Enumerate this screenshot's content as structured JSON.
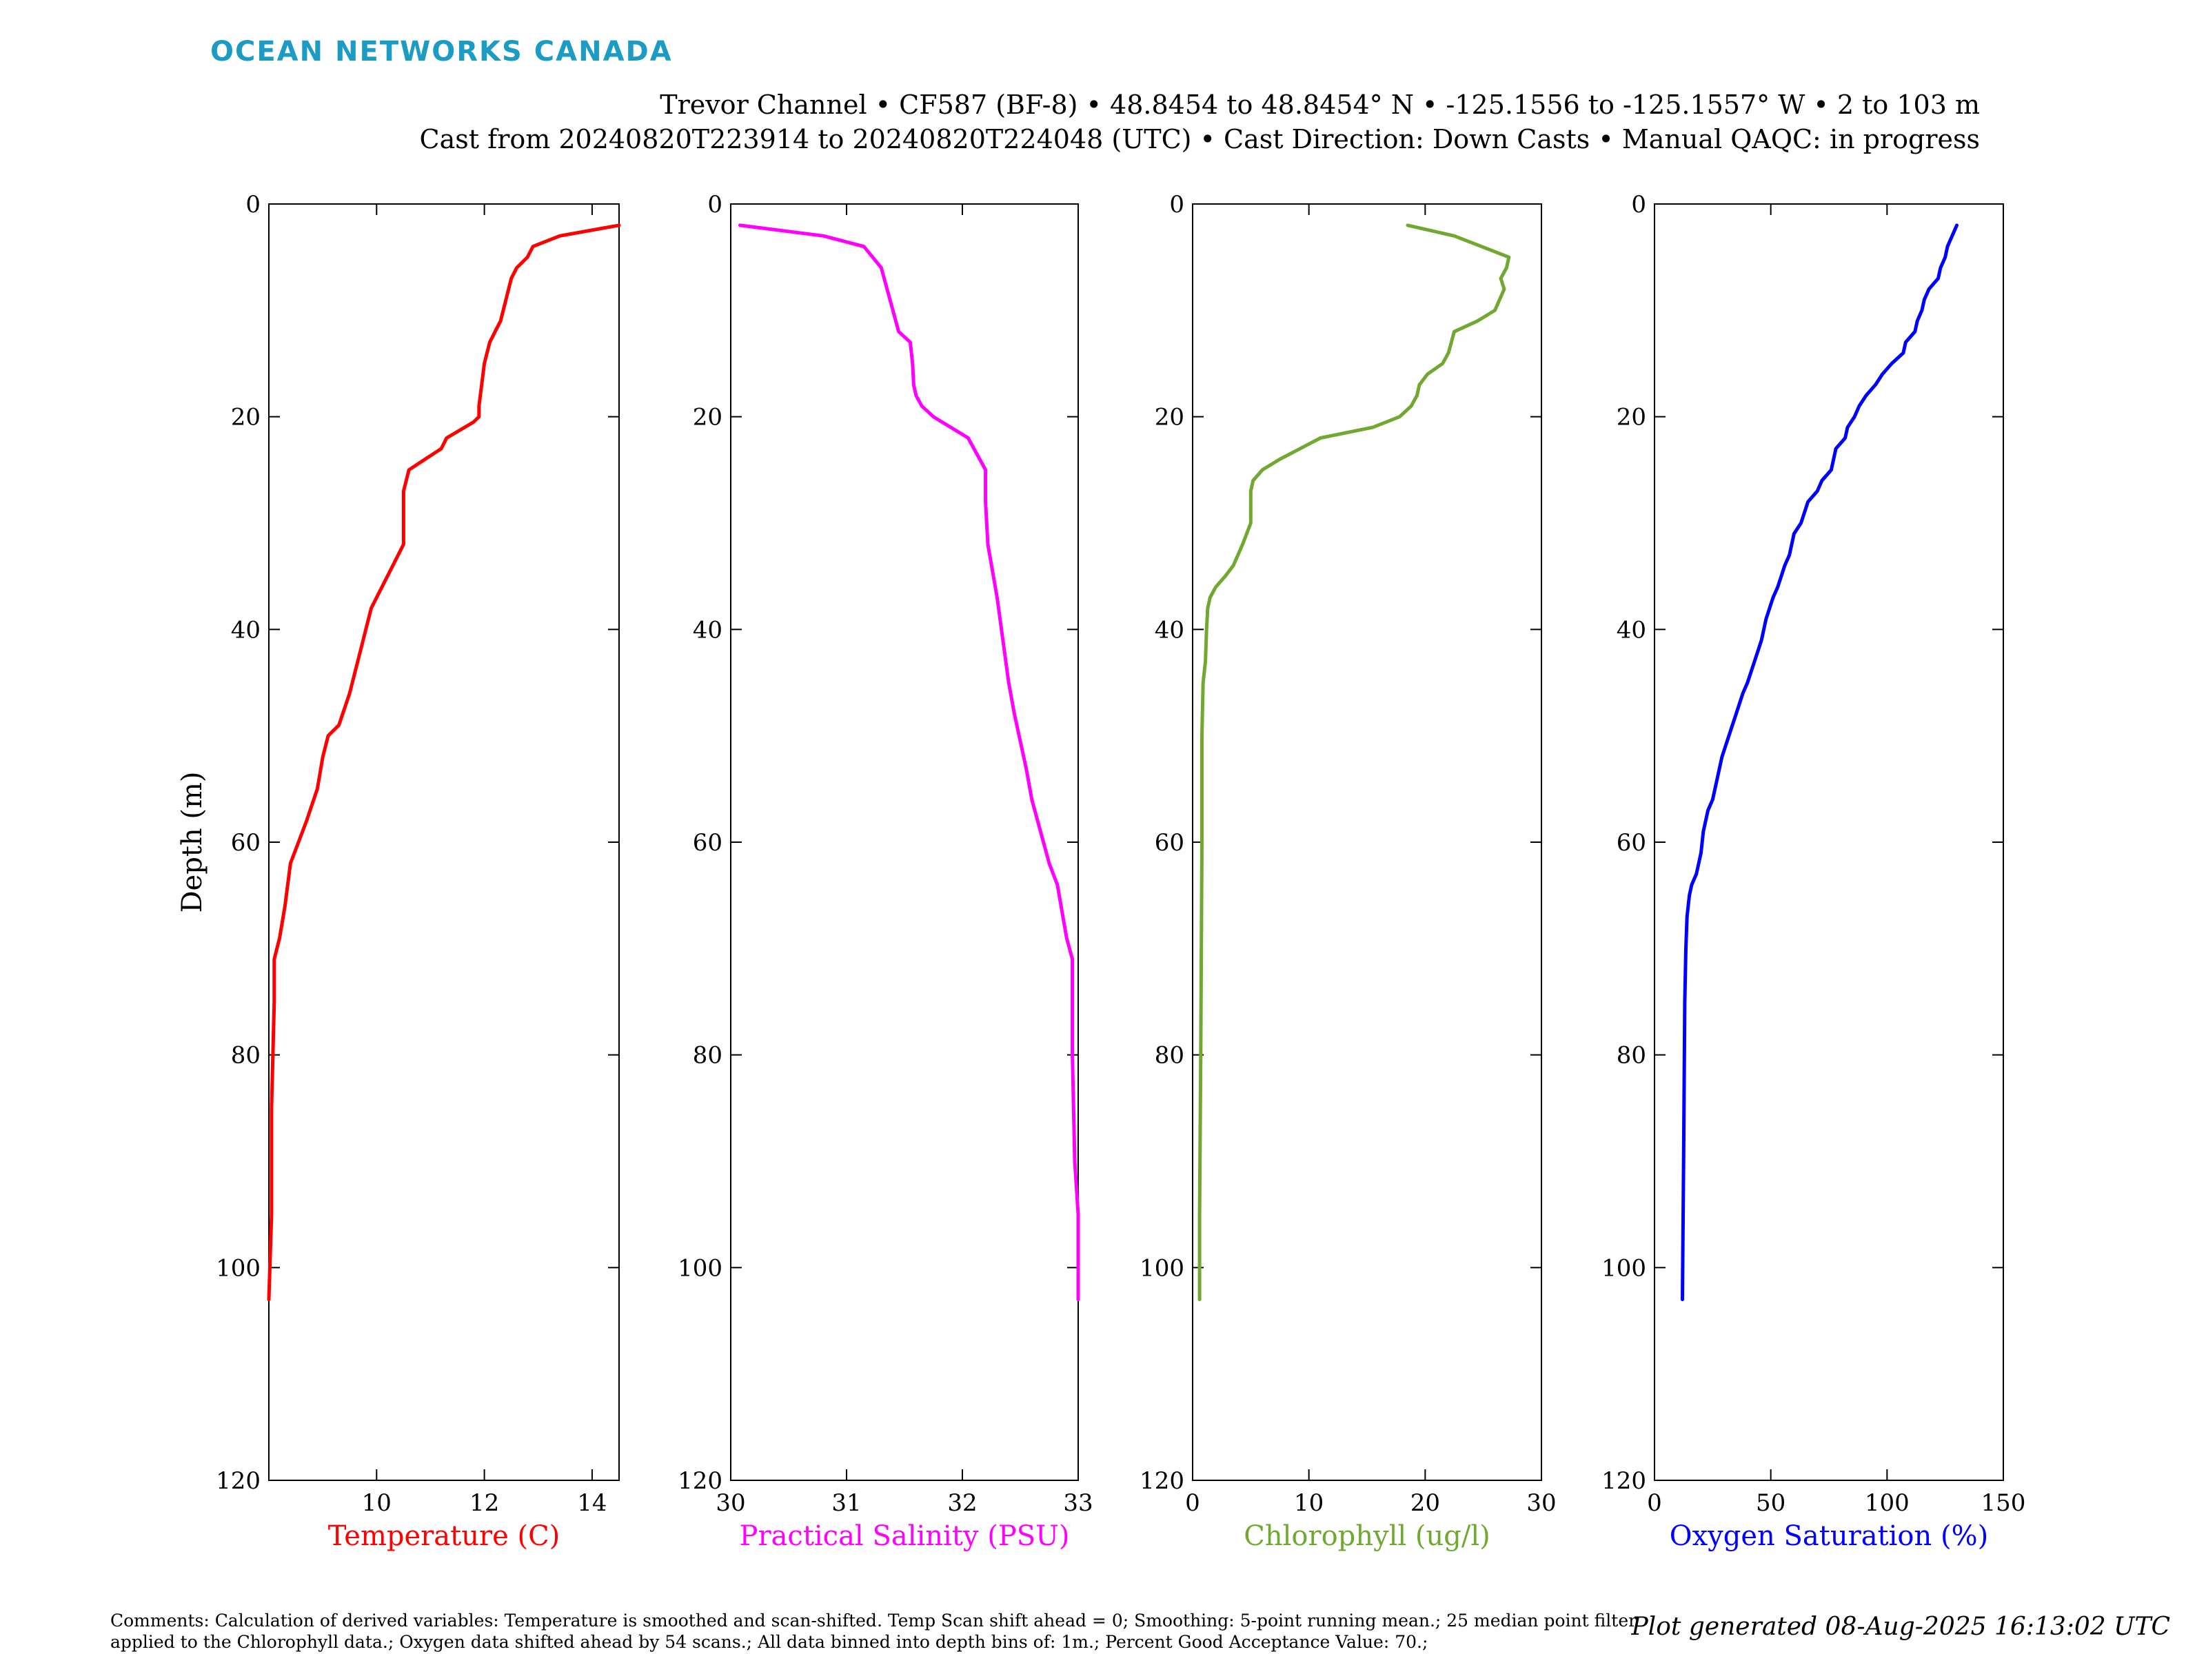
{
  "brand": {
    "logo_text": "OCEAN NETWORKS CANADA",
    "logo_color": "#1c9cc4"
  },
  "header": {
    "line1": "Trevor Channel • CF587 (BF-8) • 48.8454 to 48.8454° N • -125.1556 to -125.1557° W • 2 to 103 m",
    "line2": "Cast from 20240820T223914 to 20240820T224048 (UTC) • Cast Direction: Down Casts • Manual QAQC: in progress"
  },
  "footer": {
    "comments": "Comments: Calculation of derived variables: Temperature is smoothed and scan-shifted. Temp Scan shift ahead = 0; Smoothing: 5-point running mean.; 25 median point filter applied to the Chlorophyll data.; Oxygen data shifted ahead by 54 scans.; All data binned into depth bins of: 1m.; Percent Good Acceptance Value: 70.;",
    "generated": "Plot generated 08-Aug-2025 16:13:02 UTC"
  },
  "chart_data": [
    {
      "type": "line",
      "xlabel": "Temperature (C)",
      "ylabel": "Depth (m)",
      "xlim": [
        8,
        14.5
      ],
      "ylim": [
        0,
        120
      ],
      "y_reversed": true,
      "xticks": [
        10,
        12,
        14
      ],
      "yticks": [
        0,
        20,
        40,
        60,
        80,
        100,
        120
      ],
      "color": "#ff0000",
      "grid": false,
      "series": [
        {
          "x": [
            14.5,
            13.4,
            12.9,
            12.8,
            12.6,
            12.5,
            12.4,
            12.3,
            12.2,
            12.1,
            12.0,
            11.9,
            11.9,
            11.8,
            11.3,
            11.2,
            10.9,
            10.6,
            10.5,
            10.5,
            10.5,
            10.3,
            10.0,
            9.9,
            9.8,
            9.7,
            9.6,
            9.5,
            9.3,
            9.1,
            9.0,
            8.9,
            8.7,
            8.4,
            8.3,
            8.2,
            8.1,
            8.1,
            8.05,
            8.05,
            8.0
          ],
          "y": [
            2,
            3,
            4,
            5,
            6,
            7,
            9,
            11,
            12,
            13,
            15,
            19,
            20,
            20.5,
            22,
            23,
            24,
            25,
            27,
            30,
            32,
            34,
            37,
            38,
            40,
            42,
            44,
            46,
            49,
            50,
            52,
            55,
            58,
            62,
            66,
            69,
            71,
            75,
            85,
            95,
            103
          ]
        }
      ]
    },
    {
      "type": "line",
      "xlabel": "Practical Salinity (PSU)",
      "xlim": [
        30,
        33
      ],
      "ylim": [
        0,
        120
      ],
      "y_reversed": true,
      "xticks": [
        30,
        31,
        32,
        33
      ],
      "yticks": [
        0,
        20,
        40,
        60,
        80,
        100,
        120
      ],
      "color": "#ff00ff",
      "grid": false,
      "series": [
        {
          "x": [
            30.08,
            30.8,
            31.15,
            31.3,
            31.35,
            31.4,
            31.45,
            31.55,
            31.57,
            31.58,
            31.6,
            31.65,
            31.75,
            31.9,
            32.05,
            32.1,
            32.2,
            32.2,
            32.22,
            32.3,
            32.35,
            32.4,
            32.45,
            32.55,
            32.6,
            32.7,
            32.75,
            32.82,
            32.9,
            32.95,
            32.95,
            32.97,
            33.0,
            33.0
          ],
          "y": [
            2,
            3,
            4,
            6,
            8,
            10,
            12,
            13,
            15,
            17,
            18,
            19,
            20,
            21,
            22,
            23,
            25,
            28,
            32,
            37,
            41,
            45,
            48,
            53,
            56,
            60,
            62,
            64,
            69,
            71,
            80,
            90,
            95,
            103
          ]
        }
      ]
    },
    {
      "type": "line",
      "xlabel": "Chlorophyll (ug/l)",
      "xlim": [
        0,
        30
      ],
      "ylim": [
        0,
        120
      ],
      "y_reversed": true,
      "xticks": [
        0,
        10,
        20,
        30
      ],
      "yticks": [
        0,
        20,
        40,
        60,
        80,
        100,
        120
      ],
      "color": "#70a830",
      "grid": false,
      "series": [
        {
          "x": [
            18.5,
            22.5,
            27.2,
            27.0,
            26.5,
            26.8,
            26.0,
            24.5,
            22.5,
            22.0,
            21.5,
            20.2,
            19.5,
            19.3,
            18.8,
            17.8,
            15.5,
            11.0,
            7.5,
            6.0,
            5.2,
            5.0,
            5.0,
            4.3,
            3.5,
            2.8,
            2.0,
            1.5,
            1.3,
            1.2,
            1.1,
            0.9,
            0.8,
            0.8,
            0.7,
            0.6,
            0.6
          ],
          "y": [
            2,
            3,
            5,
            6,
            7,
            8,
            10,
            11,
            12,
            14,
            15,
            16,
            17,
            18,
            19,
            20,
            21,
            22,
            24,
            25,
            26,
            27,
            30,
            32,
            34,
            35,
            36,
            37,
            38,
            40,
            43,
            45,
            50,
            60,
            80,
            95,
            103
          ]
        }
      ]
    },
    {
      "type": "line",
      "xlabel": "Oxygen Saturation (%)",
      "xlim": [
        0,
        150
      ],
      "ylim": [
        0,
        120
      ],
      "y_reversed": true,
      "xticks": [
        0,
        50,
        100,
        150
      ],
      "yticks": [
        0,
        20,
        40,
        60,
        80,
        100,
        120
      ],
      "color": "#0000ff",
      "grid": false,
      "series": [
        {
          "x": [
            130,
            128,
            126,
            125,
            123,
            122,
            118,
            116,
            115,
            113,
            112,
            108,
            107,
            102,
            98,
            95,
            91,
            88,
            86,
            83,
            82,
            78,
            76,
            72,
            70,
            66,
            63,
            60,
            58,
            56,
            53,
            51,
            48,
            46,
            43,
            40,
            38,
            35,
            32,
            29,
            27,
            25,
            23,
            21,
            20,
            19,
            18,
            16,
            15,
            14,
            13.5,
            13,
            12.5,
            12
          ],
          "y": [
            2,
            3,
            4,
            5,
            6,
            7,
            8,
            9,
            10,
            11,
            12,
            13,
            14,
            15,
            16,
            17,
            18,
            19,
            20,
            21,
            22,
            23,
            25,
            26,
            27,
            28,
            30,
            31,
            33,
            34,
            36,
            37,
            39,
            41,
            43,
            45,
            46,
            48,
            50,
            52,
            54,
            56,
            57,
            59,
            61,
            62,
            63,
            64,
            65,
            67,
            70,
            75,
            90,
            103
          ]
        }
      ]
    }
  ]
}
